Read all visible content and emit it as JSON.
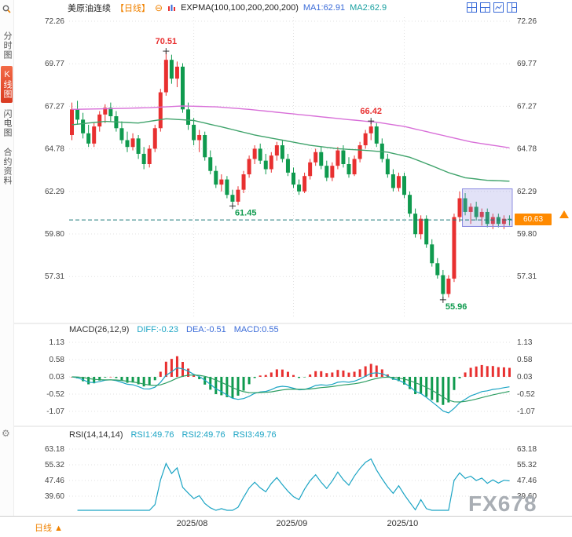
{
  "header": {
    "title": "美原油连续",
    "period_tag": "【日线】",
    "indicator": "EXPMA(100,100,200,200,200)",
    "ma1_label": "MA1:62.91",
    "ma2_label": "MA2:62.9"
  },
  "sidebar": {
    "items": [
      {
        "name": "timeshare",
        "label": "分时图",
        "active": false
      },
      {
        "name": "kline",
        "label": "K线图",
        "active": true
      },
      {
        "name": "lightning",
        "label": "闪电图",
        "active": false
      },
      {
        "name": "contract-info",
        "label": "合约资料",
        "active": false
      }
    ]
  },
  "price_axis": [
    "72.26",
    "69.77",
    "67.27",
    "64.78",
    "62.29",
    "59.80",
    "57.31"
  ],
  "current_price": "60.63",
  "macd": {
    "title": "MACD(26,12,9)",
    "diff_label": "DIFF:-0.23",
    "dea_label": "DEA:-0.51",
    "macd_label": "MACD:0.55",
    "axis": [
      "1.13",
      "0.58",
      "0.03",
      "-0.52",
      "-1.07"
    ]
  },
  "rsi": {
    "title": "RSI(14,14,14)",
    "rsi1_label": "RSI1:49.76",
    "rsi2_label": "RSI2:49.76",
    "rsi3_label": "RSI3:49.76",
    "axis": [
      "63.18",
      "55.32",
      "47.46",
      "39.60"
    ]
  },
  "bottom": {
    "period": "日线",
    "arrow": "▲"
  },
  "watermark": "FX678",
  "colors": {
    "up": "#e83030",
    "down": "#0f9a4e",
    "ema_fast": "#3fa36b",
    "ema_slow": "#d86fd8",
    "diff_line": "#1ba4c4",
    "dea_line": "#2e9e63",
    "rsi_line": "#1ba4c4",
    "dash_line": "#1f7a7a",
    "tag_bg": "#ff8a00",
    "grid": "#e0e0e0",
    "axis_text": "#444",
    "selection": "#8a8ae0"
  },
  "chart_data": {
    "type": "candlestick",
    "title": "美原油连续 日线 (US Crude Oil Continuous, Daily)",
    "ylim": [
      54.9,
      72.5
    ],
    "ohlc_format": [
      "open",
      "high",
      "low",
      "close"
    ],
    "candles": [
      [
        65.6,
        67.5,
        65.3,
        67.1
      ],
      [
        67.1,
        67.6,
        66.2,
        66.5
      ],
      [
        66.5,
        66.9,
        65.4,
        65.7
      ],
      [
        65.7,
        66.2,
        64.9,
        65.1
      ],
      [
        65.1,
        66.3,
        64.9,
        66.1
      ],
      [
        66.1,
        67.0,
        65.8,
        66.8
      ],
      [
        66.8,
        67.4,
        66.3,
        67.2
      ],
      [
        67.2,
        67.5,
        66.4,
        66.7
      ],
      [
        66.7,
        67.0,
        65.8,
        66.0
      ],
      [
        66.0,
        66.4,
        65.1,
        65.3
      ],
      [
        65.3,
        65.8,
        64.6,
        64.9
      ],
      [
        64.9,
        65.7,
        64.7,
        65.4
      ],
      [
        65.4,
        65.6,
        64.2,
        64.5
      ],
      [
        64.5,
        64.9,
        63.6,
        63.9
      ],
      [
        63.9,
        65.0,
        63.7,
        64.8
      ],
      [
        64.8,
        66.2,
        64.6,
        66.0
      ],
      [
        66.0,
        68.3,
        65.8,
        68.1
      ],
      [
        68.1,
        70.51,
        67.9,
        70.0
      ],
      [
        70.0,
        70.3,
        68.6,
        68.9
      ],
      [
        68.9,
        69.9,
        68.4,
        69.6
      ],
      [
        69.6,
        69.8,
        66.9,
        67.1
      ],
      [
        67.1,
        67.5,
        65.9,
        66.2
      ],
      [
        66.2,
        66.6,
        65.0,
        65.3
      ],
      [
        65.3,
        65.9,
        64.6,
        65.6
      ],
      [
        65.6,
        65.8,
        64.1,
        64.3
      ],
      [
        64.3,
        64.7,
        63.3,
        63.5
      ],
      [
        63.5,
        63.8,
        62.5,
        62.7
      ],
      [
        62.7,
        63.3,
        62.3,
        63.0
      ],
      [
        63.0,
        63.2,
        61.9,
        62.1
      ],
      [
        62.1,
        62.4,
        61.45,
        61.7
      ],
      [
        61.7,
        62.6,
        61.5,
        62.4
      ],
      [
        62.4,
        63.5,
        62.2,
        63.3
      ],
      [
        63.3,
        64.4,
        63.1,
        64.2
      ],
      [
        64.2,
        65.0,
        63.9,
        64.8
      ],
      [
        64.8,
        65.1,
        63.9,
        64.1
      ],
      [
        64.1,
        64.5,
        63.3,
        63.6
      ],
      [
        63.6,
        64.6,
        63.4,
        64.4
      ],
      [
        64.4,
        65.2,
        64.1,
        65.0
      ],
      [
        65.0,
        65.3,
        64.0,
        64.2
      ],
      [
        64.2,
        64.5,
        63.2,
        63.4
      ],
      [
        63.4,
        63.7,
        62.5,
        62.7
      ],
      [
        62.7,
        63.0,
        62.1,
        62.3
      ],
      [
        62.3,
        63.4,
        62.2,
        63.2
      ],
      [
        63.2,
        64.2,
        63.0,
        64.0
      ],
      [
        64.0,
        64.8,
        63.8,
        64.6
      ],
      [
        64.6,
        64.9,
        63.6,
        63.8
      ],
      [
        63.8,
        64.1,
        62.9,
        63.1
      ],
      [
        63.1,
        64.0,
        62.9,
        63.8
      ],
      [
        63.8,
        64.9,
        63.6,
        64.7
      ],
      [
        64.7,
        65.0,
        63.7,
        63.9
      ],
      [
        63.9,
        64.3,
        63.1,
        63.3
      ],
      [
        63.3,
        64.4,
        63.2,
        64.2
      ],
      [
        64.2,
        65.2,
        64.0,
        65.0
      ],
      [
        65.0,
        65.9,
        64.8,
        65.7
      ],
      [
        65.7,
        66.42,
        65.3,
        66.1
      ],
      [
        66.1,
        66.3,
        64.9,
        65.1
      ],
      [
        65.1,
        65.4,
        64.0,
        64.2
      ],
      [
        64.2,
        64.5,
        63.1,
        63.3
      ],
      [
        63.3,
        63.6,
        62.3,
        62.5
      ],
      [
        62.5,
        63.4,
        62.3,
        63.2
      ],
      [
        63.2,
        63.4,
        61.9,
        62.1
      ],
      [
        62.1,
        62.3,
        60.8,
        61.0
      ],
      [
        61.0,
        61.3,
        59.6,
        59.8
      ],
      [
        59.8,
        60.9,
        59.5,
        60.7
      ],
      [
        60.7,
        60.9,
        59.0,
        59.2
      ],
      [
        59.2,
        59.5,
        57.9,
        58.1
      ],
      [
        58.1,
        58.4,
        57.2,
        57.4
      ],
      [
        57.4,
        57.7,
        55.96,
        56.3
      ],
      [
        56.3,
        57.4,
        56.1,
        57.2
      ],
      [
        57.2,
        61.0,
        57.0,
        60.8
      ],
      [
        60.8,
        62.3,
        60.5,
        61.9
      ],
      [
        61.9,
        62.2,
        60.9,
        61.1
      ],
      [
        61.1,
        61.6,
        60.4,
        61.4
      ],
      [
        61.4,
        61.7,
        60.6,
        60.8
      ],
      [
        60.8,
        61.3,
        60.3,
        61.1
      ],
      [
        61.1,
        61.3,
        60.2,
        60.4
      ],
      [
        60.4,
        61.0,
        60.1,
        60.8
      ],
      [
        60.8,
        61.0,
        60.2,
        60.4
      ],
      [
        60.4,
        60.9,
        60.1,
        60.7
      ],
      [
        60.7,
        60.9,
        60.3,
        60.63
      ]
    ],
    "ema_fast": [
      [
        0,
        66.2
      ],
      [
        6,
        66.4
      ],
      [
        12,
        66.3
      ],
      [
        17,
        66.55
      ],
      [
        22,
        66.45
      ],
      [
        28,
        66.0
      ],
      [
        33,
        65.6
      ],
      [
        38,
        65.3
      ],
      [
        43,
        65.0
      ],
      [
        48,
        64.8
      ],
      [
        53,
        64.7
      ],
      [
        57,
        64.6
      ],
      [
        61,
        64.3
      ],
      [
        65,
        63.8
      ],
      [
        68,
        63.4
      ],
      [
        71,
        63.1
      ],
      [
        75,
        62.95
      ],
      [
        79,
        62.9
      ]
    ],
    "ema_slow": [
      [
        0,
        67.1
      ],
      [
        8,
        67.15
      ],
      [
        14,
        67.2
      ],
      [
        20,
        67.3
      ],
      [
        26,
        67.25
      ],
      [
        32,
        67.1
      ],
      [
        38,
        66.9
      ],
      [
        44,
        66.7
      ],
      [
        50,
        66.5
      ],
      [
        55,
        66.35
      ],
      [
        60,
        66.1
      ],
      [
        64,
        65.8
      ],
      [
        68,
        65.5
      ],
      [
        72,
        65.2
      ],
      [
        76,
        65.0
      ],
      [
        79,
        64.85
      ]
    ],
    "month_ticks": [
      {
        "index": 22,
        "label": "2025/08"
      },
      {
        "index": 40,
        "label": "2025/09"
      },
      {
        "index": 60,
        "label": "2025/10"
      }
    ],
    "marks": [
      {
        "index": 17,
        "price": 70.51,
        "label": "70.51",
        "dir": "up",
        "pos": "above"
      },
      {
        "index": 54,
        "price": 66.42,
        "label": "66.42",
        "dir": "up",
        "pos": "above"
      },
      {
        "index": 29,
        "price": 61.45,
        "label": "61.45",
        "dir": "down",
        "pos": "below"
      },
      {
        "index": 67,
        "price": 55.96,
        "label": "55.96",
        "dir": "down",
        "pos": "below"
      }
    ],
    "selection": {
      "from": 71,
      "to": 79,
      "top": 62.45,
      "bottom": 60.25
    },
    "last_price": 60.63,
    "indicators": {
      "expma_periods": [
        100,
        100,
        200,
        200,
        200
      ],
      "ma1": 62.91,
      "ma2": 62.9,
      "macd": {
        "params": [
          26,
          12,
          9
        ],
        "diff": -0.23,
        "dea": -0.51,
        "macd": 0.55,
        "axis": [
          1.13,
          0.58,
          0.03,
          -0.52,
          -1.07
        ]
      },
      "rsi": {
        "params": [
          14,
          14,
          14
        ],
        "rsi1": 49.76,
        "rsi2": 49.76,
        "rsi3": 49.76,
        "axis": [
          63.18,
          55.32,
          47.46,
          39.6
        ]
      }
    }
  }
}
